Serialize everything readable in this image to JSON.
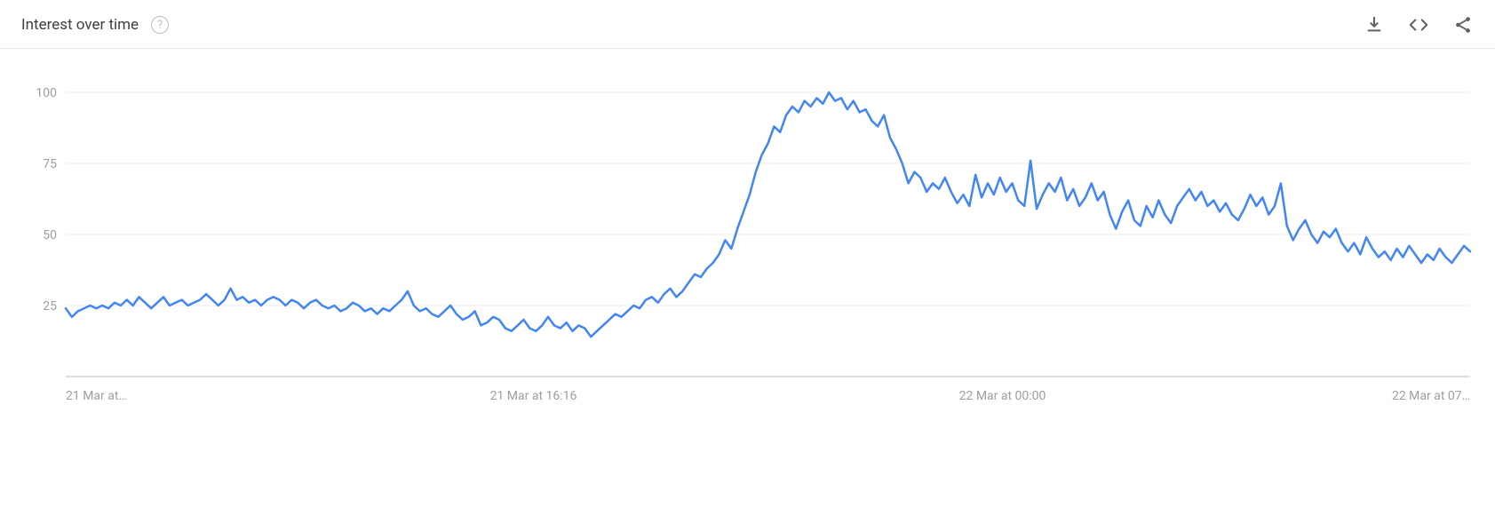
{
  "header": {
    "title": "Interest over time",
    "help_tooltip": "?"
  },
  "actions": {
    "download_label": "Download CSV",
    "embed_label": "Embed",
    "share_label": "Share"
  },
  "chart": {
    "type": "line",
    "background_color": "#ffffff",
    "grid_color": "#eeeeee",
    "baseline_color": "#bdbdbd",
    "line_color": "#4285f4",
    "line_width": 2.5,
    "ylim": [
      0,
      100
    ],
    "ytick_step": 25,
    "yticks": [
      25,
      50,
      75,
      100
    ],
    "xticks": [
      {
        "pos": 0.0,
        "label": "21 Mar at…",
        "anchor": "start"
      },
      {
        "pos": 0.333,
        "label": "21 Mar at 16:16",
        "anchor": "middle"
      },
      {
        "pos": 0.667,
        "label": "22 Mar at 00:00",
        "anchor": "middle"
      },
      {
        "pos": 1.0,
        "label": "22 Mar at 07…",
        "anchor": "end"
      }
    ],
    "label_color": "#9e9e9e",
    "label_fontsize": 14,
    "values": [
      24,
      21,
      23,
      24,
      25,
      24,
      25,
      24,
      26,
      25,
      27,
      25,
      28,
      26,
      24,
      26,
      28,
      25,
      26,
      27,
      25,
      26,
      27,
      29,
      27,
      25,
      27,
      31,
      27,
      28,
      26,
      27,
      25,
      27,
      28,
      27,
      25,
      27,
      26,
      24,
      26,
      27,
      25,
      24,
      25,
      23,
      24,
      26,
      25,
      23,
      24,
      22,
      24,
      23,
      25,
      27,
      30,
      25,
      23,
      24,
      22,
      21,
      23,
      25,
      22,
      20,
      21,
      23,
      18,
      19,
      21,
      20,
      17,
      16,
      18,
      20,
      17,
      16,
      18,
      21,
      18,
      17,
      19,
      16,
      18,
      17,
      14,
      16,
      18,
      20,
      22,
      21,
      23,
      25,
      24,
      27,
      28,
      26,
      29,
      31,
      28,
      30,
      33,
      36,
      35,
      38,
      40,
      43,
      48,
      45,
      52,
      58,
      64,
      72,
      78,
      82,
      88,
      86,
      92,
      95,
      93,
      97,
      95,
      98,
      96,
      100,
      97,
      98,
      94,
      97,
      93,
      94,
      90,
      88,
      92,
      84,
      80,
      75,
      68,
      72,
      70,
      65,
      68,
      66,
      70,
      65,
      61,
      64,
      60,
      71,
      63,
      68,
      64,
      70,
      65,
      68,
      62,
      60,
      76,
      59,
      64,
      68,
      65,
      70,
      62,
      66,
      60,
      63,
      68,
      62,
      65,
      57,
      52,
      58,
      62,
      55,
      53,
      60,
      56,
      62,
      57,
      54,
      60,
      63,
      66,
      62,
      65,
      60,
      62,
      58,
      61,
      57,
      55,
      59,
      64,
      60,
      63,
      57,
      60,
      68,
      53,
      48,
      52,
      55,
      50,
      47,
      51,
      49,
      52,
      47,
      44,
      47,
      43,
      49,
      45,
      42,
      44,
      41,
      45,
      42,
      46,
      43,
      40,
      43,
      41,
      45,
      42,
      40,
      43,
      46,
      44
    ]
  }
}
